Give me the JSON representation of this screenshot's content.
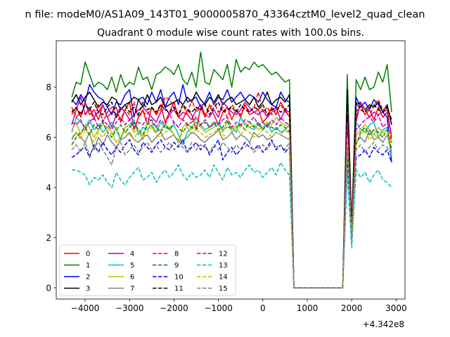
{
  "figure": {
    "suptitle": "n file: modeM0/AS1A09_143T01_9000005870_43364cztM0_level2_quad_clean",
    "offset_label": "+4.342e8"
  },
  "chart_data": {
    "type": "line",
    "title": "Quadrant 0 module wise count rates with 100.0s bins.",
    "xlabel": "",
    "ylabel": "",
    "xlim": [
      -4650,
      3200
    ],
    "ylim": [
      -0.45,
      9.85
    ],
    "x_offset": 434200000,
    "xticks": [
      -4000,
      -3000,
      -2000,
      -1000,
      0,
      1000,
      2000,
      3000
    ],
    "xtick_labels": [
      "−4000",
      "−3000",
      "−2000",
      "−1000",
      "0",
      "1000",
      "2000",
      "3000"
    ],
    "yticks": [
      0,
      2,
      4,
      6,
      8
    ],
    "ytick_labels": [
      "0",
      "2",
      "4",
      "6",
      "8"
    ],
    "grid": false,
    "legend": {
      "placement": "lower-left",
      "columns": 4
    },
    "segments": [
      {
        "x_start": -4300,
        "x_end": 600,
        "step": 100
      },
      {
        "x_start": 700,
        "x_end": 1800,
        "step": 100,
        "flat_value": 0
      },
      {
        "x_start": 1900,
        "x_end": 3000,
        "step": 100
      }
    ],
    "series": [
      {
        "name": "0",
        "color": "#ff0000",
        "dash": "solid",
        "values": [
          6.9,
          7.2,
          6.8,
          7.4,
          6.9,
          7.1,
          6.7,
          7.3,
          6.8,
          7.0,
          7.2,
          6.6,
          7.1,
          7.4,
          6.3,
          6.8,
          7.1,
          6.5,
          7.2,
          6.9,
          7.3,
          6.6,
          7.0,
          7.4,
          6.8,
          6.7,
          7.1,
          6.9,
          6.3,
          7.2,
          6.8,
          7.3,
          6.9,
          6.5,
          7.0,
          7.2,
          6.7,
          7.1,
          6.8,
          7.3,
          6.9,
          7.0,
          7.1,
          6.6,
          6.8,
          7.2,
          6.9,
          7.4,
          7.1,
          6.8,
          7.0,
          2.3,
          6.8,
          7.3,
          6.9,
          7.1,
          6.7,
          7.2,
          6.8,
          7.0,
          6.0
        ]
      },
      {
        "name": "1",
        "color": "#008000",
        "dash": "solid",
        "values": [
          7.6,
          8.2,
          8.1,
          9.0,
          8.5,
          8.0,
          8.2,
          8.1,
          7.9,
          8.4,
          7.8,
          8.5,
          8.0,
          8.2,
          8.1,
          8.8,
          8.3,
          8.4,
          7.9,
          8.5,
          8.6,
          8.8,
          8.7,
          8.5,
          8.9,
          8.3,
          8.1,
          8.6,
          8.0,
          9.4,
          8.2,
          8.1,
          8.7,
          8.5,
          8.3,
          8.9,
          8.0,
          9.1,
          8.6,
          8.8,
          8.7,
          9.0,
          8.8,
          8.9,
          8.7,
          8.5,
          8.6,
          8.4,
          8.2,
          8.3,
          8.5,
          2.4,
          8.3,
          7.9,
          8.4,
          7.9,
          8.0,
          8.6,
          8.2,
          8.9,
          7.0
        ]
      },
      {
        "name": "2",
        "color": "#0000ff",
        "dash": "solid",
        "values": [
          7.5,
          7.3,
          7.7,
          7.4,
          8.1,
          7.8,
          7.6,
          7.5,
          7.2,
          6.9,
          7.4,
          7.3,
          7.7,
          7.9,
          6.8,
          7.5,
          7.6,
          7.3,
          7.8,
          7.4,
          7.9,
          7.2,
          7.6,
          7.8,
          7.3,
          8.1,
          7.4,
          7.5,
          7.6,
          7.2,
          7.4,
          7.8,
          7.3,
          7.6,
          7.5,
          7.9,
          7.4,
          7.6,
          7.8,
          7.5,
          7.7,
          7.6,
          7.4,
          7.8,
          7.5,
          7.3,
          7.2,
          7.8,
          7.5,
          7.4,
          7.5,
          2.3,
          7.6,
          7.2,
          7.4,
          7.1,
          7.5,
          7.3,
          7.0,
          6.8,
          5.0
        ]
      },
      {
        "name": "3",
        "color": "#000000",
        "dash": "solid",
        "values": [
          7.4,
          7.7,
          7.3,
          7.6,
          7.8,
          7.5,
          7.2,
          7.4,
          7.3,
          7.6,
          7.5,
          7.1,
          7.3,
          7.4,
          7.6,
          7.5,
          7.2,
          7.7,
          7.3,
          7.4,
          7.6,
          7.2,
          7.3,
          7.4,
          7.5,
          7.3,
          7.6,
          7.4,
          7.8,
          7.5,
          7.3,
          7.6,
          7.4,
          7.7,
          7.3,
          7.5,
          7.6,
          7.3,
          7.4,
          7.5,
          7.3,
          7.6,
          7.2,
          7.4,
          7.8,
          7.3,
          7.5,
          7.6,
          7.4,
          7.7,
          7.9,
          2.4,
          7.3,
          7.4,
          7.1,
          7.3,
          7.2,
          7.4,
          7.0,
          7.3,
          6.5
        ]
      },
      {
        "name": "4",
        "color": "#bf00bf",
        "dash": "solid",
        "values": [
          6.5,
          7.1,
          7.6,
          6.9,
          7.2,
          6.8,
          7.0,
          7.3,
          6.8,
          6.4,
          6.9,
          7.2,
          7.0,
          6.7,
          6.9,
          7.1,
          7.2,
          7.0,
          6.8,
          6.6,
          7.0,
          7.2,
          6.9,
          7.1,
          6.8,
          7.0,
          6.9,
          6.7,
          7.1,
          7.3,
          6.9,
          6.8,
          7.1,
          6.8,
          7.4,
          7.2,
          7.0,
          6.9,
          7.1,
          7.4,
          7.2,
          7.0,
          6.9,
          7.1,
          6.8,
          7.0,
          7.2,
          6.7,
          7.1,
          7.0,
          7.0,
          2.3,
          6.6,
          7.4,
          7.1,
          6.8,
          7.0,
          6.9,
          7.0,
          7.1,
          6.0
        ]
      },
      {
        "name": "5",
        "color": "#00bfbf",
        "dash": "solid",
        "values": [
          6.2,
          6.8,
          6.6,
          6.4,
          6.7,
          6.3,
          6.5,
          6.2,
          6.4,
          6.6,
          6.3,
          5.9,
          6.4,
          6.5,
          6.7,
          6.1,
          6.4,
          6.3,
          6.5,
          6.2,
          6.6,
          6.4,
          6.3,
          6.5,
          6.1,
          5.7,
          6.2,
          6.4,
          6.6,
          6.5,
          6.3,
          6.4,
          6.5,
          6.6,
          6.3,
          6.4,
          6.4,
          6.2,
          6.8,
          6.5,
          6.4,
          6.3,
          6.5,
          6.3,
          6.6,
          6.2,
          6.4,
          6.2,
          6.3,
          6.5,
          6.1,
          2.1,
          6.6,
          6.3,
          6.2,
          6.5,
          6.6,
          6.0,
          6.3,
          6.4,
          5.2
        ]
      },
      {
        "name": "6",
        "color": "#bfbf00",
        "dash": "solid",
        "values": [
          6.3,
          6.6,
          6.1,
          6.5,
          6.4,
          6.0,
          6.3,
          6.5,
          6.4,
          6.2,
          5.8,
          6.0,
          6.4,
          6.5,
          6.2,
          6.3,
          5.9,
          6.6,
          6.4,
          6.2,
          6.3,
          6.5,
          6.4,
          6.1,
          5.8,
          6.4,
          6.6,
          6.3,
          6.8,
          6.4,
          6.2,
          6.3,
          6.4,
          6.5,
          6.2,
          6.6,
          6.3,
          6.5,
          6.4,
          6.6,
          6.4,
          6.5,
          6.3,
          6.4,
          6.6,
          6.5,
          6.8,
          6.6,
          6.5,
          6.4,
          6.3,
          2.1,
          6.1,
          6.3,
          6.5,
          6.3,
          6.1,
          6.4,
          6.2,
          6.3,
          5.8
        ]
      },
      {
        "name": "7",
        "color": "#808080",
        "dash": "solid",
        "values": [
          5.9,
          6.2,
          6.0,
          5.8,
          6.2,
          5.5,
          6.0,
          5.7,
          6.1,
          5.8,
          5.6,
          5.9,
          6.0,
          6.2,
          5.9,
          5.8,
          6.0,
          6.1,
          5.8,
          6.0,
          6.2,
          5.9,
          6.0,
          6.1,
          5.8,
          5.9,
          6.0,
          6.2,
          6.1,
          5.9,
          5.8,
          6.0,
          6.1,
          6.3,
          5.9,
          6.0,
          6.2,
          5.9,
          6.1,
          6.0,
          5.8,
          6.2,
          6.0,
          6.1,
          5.9,
          6.0,
          6.2,
          6.1,
          6.0,
          5.9,
          6.1,
          1.9,
          5.8,
          6.0,
          5.8,
          6.3,
          5.9,
          6.0,
          5.8,
          6.1,
          5.4
        ]
      },
      {
        "name": "8",
        "color": "#ff0000",
        "dash": "dashed",
        "values": [
          7.2,
          6.8,
          7.0,
          6.9,
          7.1,
          6.7,
          7.3,
          6.6,
          7.0,
          7.2,
          6.8,
          6.7,
          7.1,
          6.9,
          7.4,
          6.8,
          7.0,
          6.9,
          7.2,
          6.9,
          7.1,
          7.6,
          7.5,
          7.2,
          6.8,
          7.3,
          6.9,
          7.5,
          7.0,
          7.2,
          6.9,
          7.1,
          7.4,
          7.0,
          7.2,
          6.8,
          7.3,
          7.1,
          6.9,
          7.3,
          7.0,
          7.2,
          7.8,
          7.0,
          7.2,
          6.9,
          7.1,
          7.3,
          7.0,
          7.0,
          6.9,
          2.3,
          7.0,
          7.3,
          7.1,
          6.8,
          7.3,
          7.5,
          7.1,
          7.2,
          5.8
        ]
      },
      {
        "name": "9",
        "color": "#008000",
        "dash": "dashed",
        "values": [
          5.7,
          6.0,
          6.2,
          6.4,
          6.1,
          6.5,
          6.3,
          6.6,
          6.2,
          6.0,
          6.3,
          6.5,
          6.2,
          6.4,
          6.6,
          6.3,
          6.1,
          6.5,
          6.7,
          6.4,
          6.2,
          6.5,
          6.3,
          6.6,
          6.4,
          6.2,
          6.5,
          6.4,
          6.3,
          6.5,
          6.6,
          6.4,
          6.6,
          6.3,
          6.4,
          6.7,
          6.2,
          6.4,
          6.5,
          6.3,
          6.6,
          6.4,
          6.6,
          6.3,
          6.5,
          6.4,
          6.3,
          6.5,
          6.4,
          6.2,
          6.2,
          2.0,
          5.7,
          6.2,
          6.4,
          6.1,
          6.3,
          6.2,
          6.0,
          6.3,
          5.5
        ]
      },
      {
        "name": "10",
        "color": "#0000ff",
        "dash": "dashed",
        "values": [
          5.2,
          5.3,
          5.5,
          5.6,
          5.2,
          5.7,
          5.4,
          5.8,
          5.5,
          5.3,
          5.6,
          5.4,
          5.7,
          5.9,
          5.5,
          5.3,
          5.8,
          5.6,
          5.4,
          5.7,
          5.9,
          5.6,
          5.5,
          5.8,
          5.6,
          5.9,
          5.4,
          5.6,
          5.8,
          5.5,
          5.7,
          5.3,
          5.6,
          5.9,
          5.1,
          5.4,
          5.6,
          5.3,
          5.5,
          5.8,
          5.6,
          5.5,
          5.7,
          5.4,
          5.6,
          5.9,
          5.5,
          5.7,
          5.4,
          5.6,
          5.3,
          1.8,
          5.2,
          5.3,
          5.5,
          5.2,
          5.6,
          5.4,
          5.3,
          5.5,
          5.0
        ]
      },
      {
        "name": "11",
        "color": "#000000",
        "dash": "dashed",
        "values": [
          7.0,
          7.2,
          6.9,
          7.3,
          7.1,
          7.4,
          7.0,
          6.9,
          7.2,
          7.4,
          6.8,
          7.1,
          7.3,
          7.0,
          7.2,
          6.9,
          7.4,
          7.1,
          7.2,
          7.0,
          7.3,
          7.1,
          7.0,
          7.2,
          6.9,
          7.3,
          7.1,
          7.0,
          7.2,
          7.1,
          7.3,
          6.9,
          7.2,
          7.4,
          7.0,
          7.1,
          7.2,
          7.0,
          7.3,
          7.1,
          7.0,
          7.2,
          7.1,
          7.3,
          6.9,
          7.1,
          7.2,
          7.0,
          7.1,
          7.3,
          6.9,
          2.3,
          7.4,
          7.1,
          7.0,
          7.2,
          7.3,
          7.1,
          7.0,
          7.2,
          6.7
        ]
      },
      {
        "name": "12",
        "color": "#bf00bf",
        "dash": "dashed",
        "values": [
          6.6,
          6.5,
          6.7,
          6.3,
          6.6,
          6.8,
          6.4,
          6.7,
          6.5,
          6.3,
          6.6,
          6.8,
          6.5,
          6.7,
          6.4,
          6.6,
          6.5,
          6.8,
          6.6,
          6.4,
          6.7,
          6.5,
          6.9,
          6.6,
          6.4,
          6.7,
          6.5,
          6.6,
          6.8,
          6.5,
          6.7,
          6.4,
          6.6,
          6.5,
          6.7,
          6.8,
          6.4,
          6.6,
          6.5,
          6.7,
          6.6,
          6.8,
          6.5,
          6.6,
          6.4,
          6.7,
          6.5,
          6.8,
          6.6,
          6.5,
          6.6,
          2.1,
          6.3,
          6.5,
          6.7,
          6.8,
          6.6,
          6.9,
          6.4,
          6.6,
          6.2
        ]
      },
      {
        "name": "13",
        "color": "#00bfbf",
        "dash": "dashed",
        "values": [
          4.7,
          4.7,
          4.6,
          4.5,
          4.1,
          4.4,
          4.3,
          4.5,
          4.2,
          4.0,
          4.6,
          4.3,
          4.1,
          4.4,
          4.6,
          4.8,
          4.3,
          4.4,
          4.6,
          4.2,
          4.5,
          4.7,
          4.4,
          4.6,
          4.9,
          4.5,
          4.3,
          4.6,
          4.4,
          4.5,
          4.7,
          4.4,
          4.9,
          4.6,
          4.3,
          4.8,
          4.5,
          4.6,
          4.4,
          4.7,
          4.9,
          4.6,
          4.7,
          4.4,
          4.6,
          4.8,
          4.5,
          5.0,
          4.7,
          4.5,
          4.6,
          1.6,
          4.7,
          4.4,
          4.6,
          4.2,
          4.5,
          4.7,
          4.3,
          4.2,
          4.0
        ]
      },
      {
        "name": "14",
        "color": "#bfbf00",
        "dash": "dashed",
        "values": [
          6.0,
          6.2,
          5.9,
          6.3,
          6.1,
          5.8,
          6.2,
          6.0,
          6.3,
          6.1,
          6.4,
          6.0,
          6.2,
          6.1,
          5.9,
          6.3,
          6.0,
          6.2,
          6.4,
          6.1,
          6.0,
          6.2,
          6.3,
          6.1,
          5.9,
          6.2,
          6.4,
          6.1,
          6.3,
          6.2,
          6.0,
          6.1,
          6.2,
          6.3,
          6.1,
          6.0,
          6.2,
          6.4,
          6.1,
          6.3,
          6.2,
          6.0,
          6.1,
          6.3,
          6.2,
          6.0,
          6.2,
          6.1,
          6.3,
          6.1,
          6.0,
          2.0,
          5.8,
          6.1,
          6.3,
          5.9,
          6.1,
          6.0,
          6.2,
          6.1,
          5.7
        ]
      },
      {
        "name": "15",
        "color": "#808080",
        "dash": "dashed",
        "values": [
          5.5,
          5.7,
          5.4,
          5.8,
          5.3,
          5.6,
          5.8,
          5.5,
          5.2,
          4.9,
          5.6,
          5.8,
          5.3,
          5.5,
          5.7,
          5.4,
          5.6,
          5.8,
          5.5,
          5.7,
          5.4,
          5.6,
          5.8,
          5.5,
          5.7,
          5.6,
          5.4,
          5.8,
          5.5,
          5.7,
          5.6,
          5.4,
          5.7,
          5.5,
          5.8,
          5.6,
          5.4,
          5.7,
          5.5,
          5.6,
          5.8,
          5.4,
          5.6,
          5.7,
          5.5,
          5.8,
          5.6,
          5.7,
          5.5,
          5.8,
          5.6,
          1.9,
          5.5,
          5.7,
          5.4,
          5.6,
          5.8,
          5.5,
          5.7,
          5.6,
          5.3
        ]
      }
    ]
  }
}
